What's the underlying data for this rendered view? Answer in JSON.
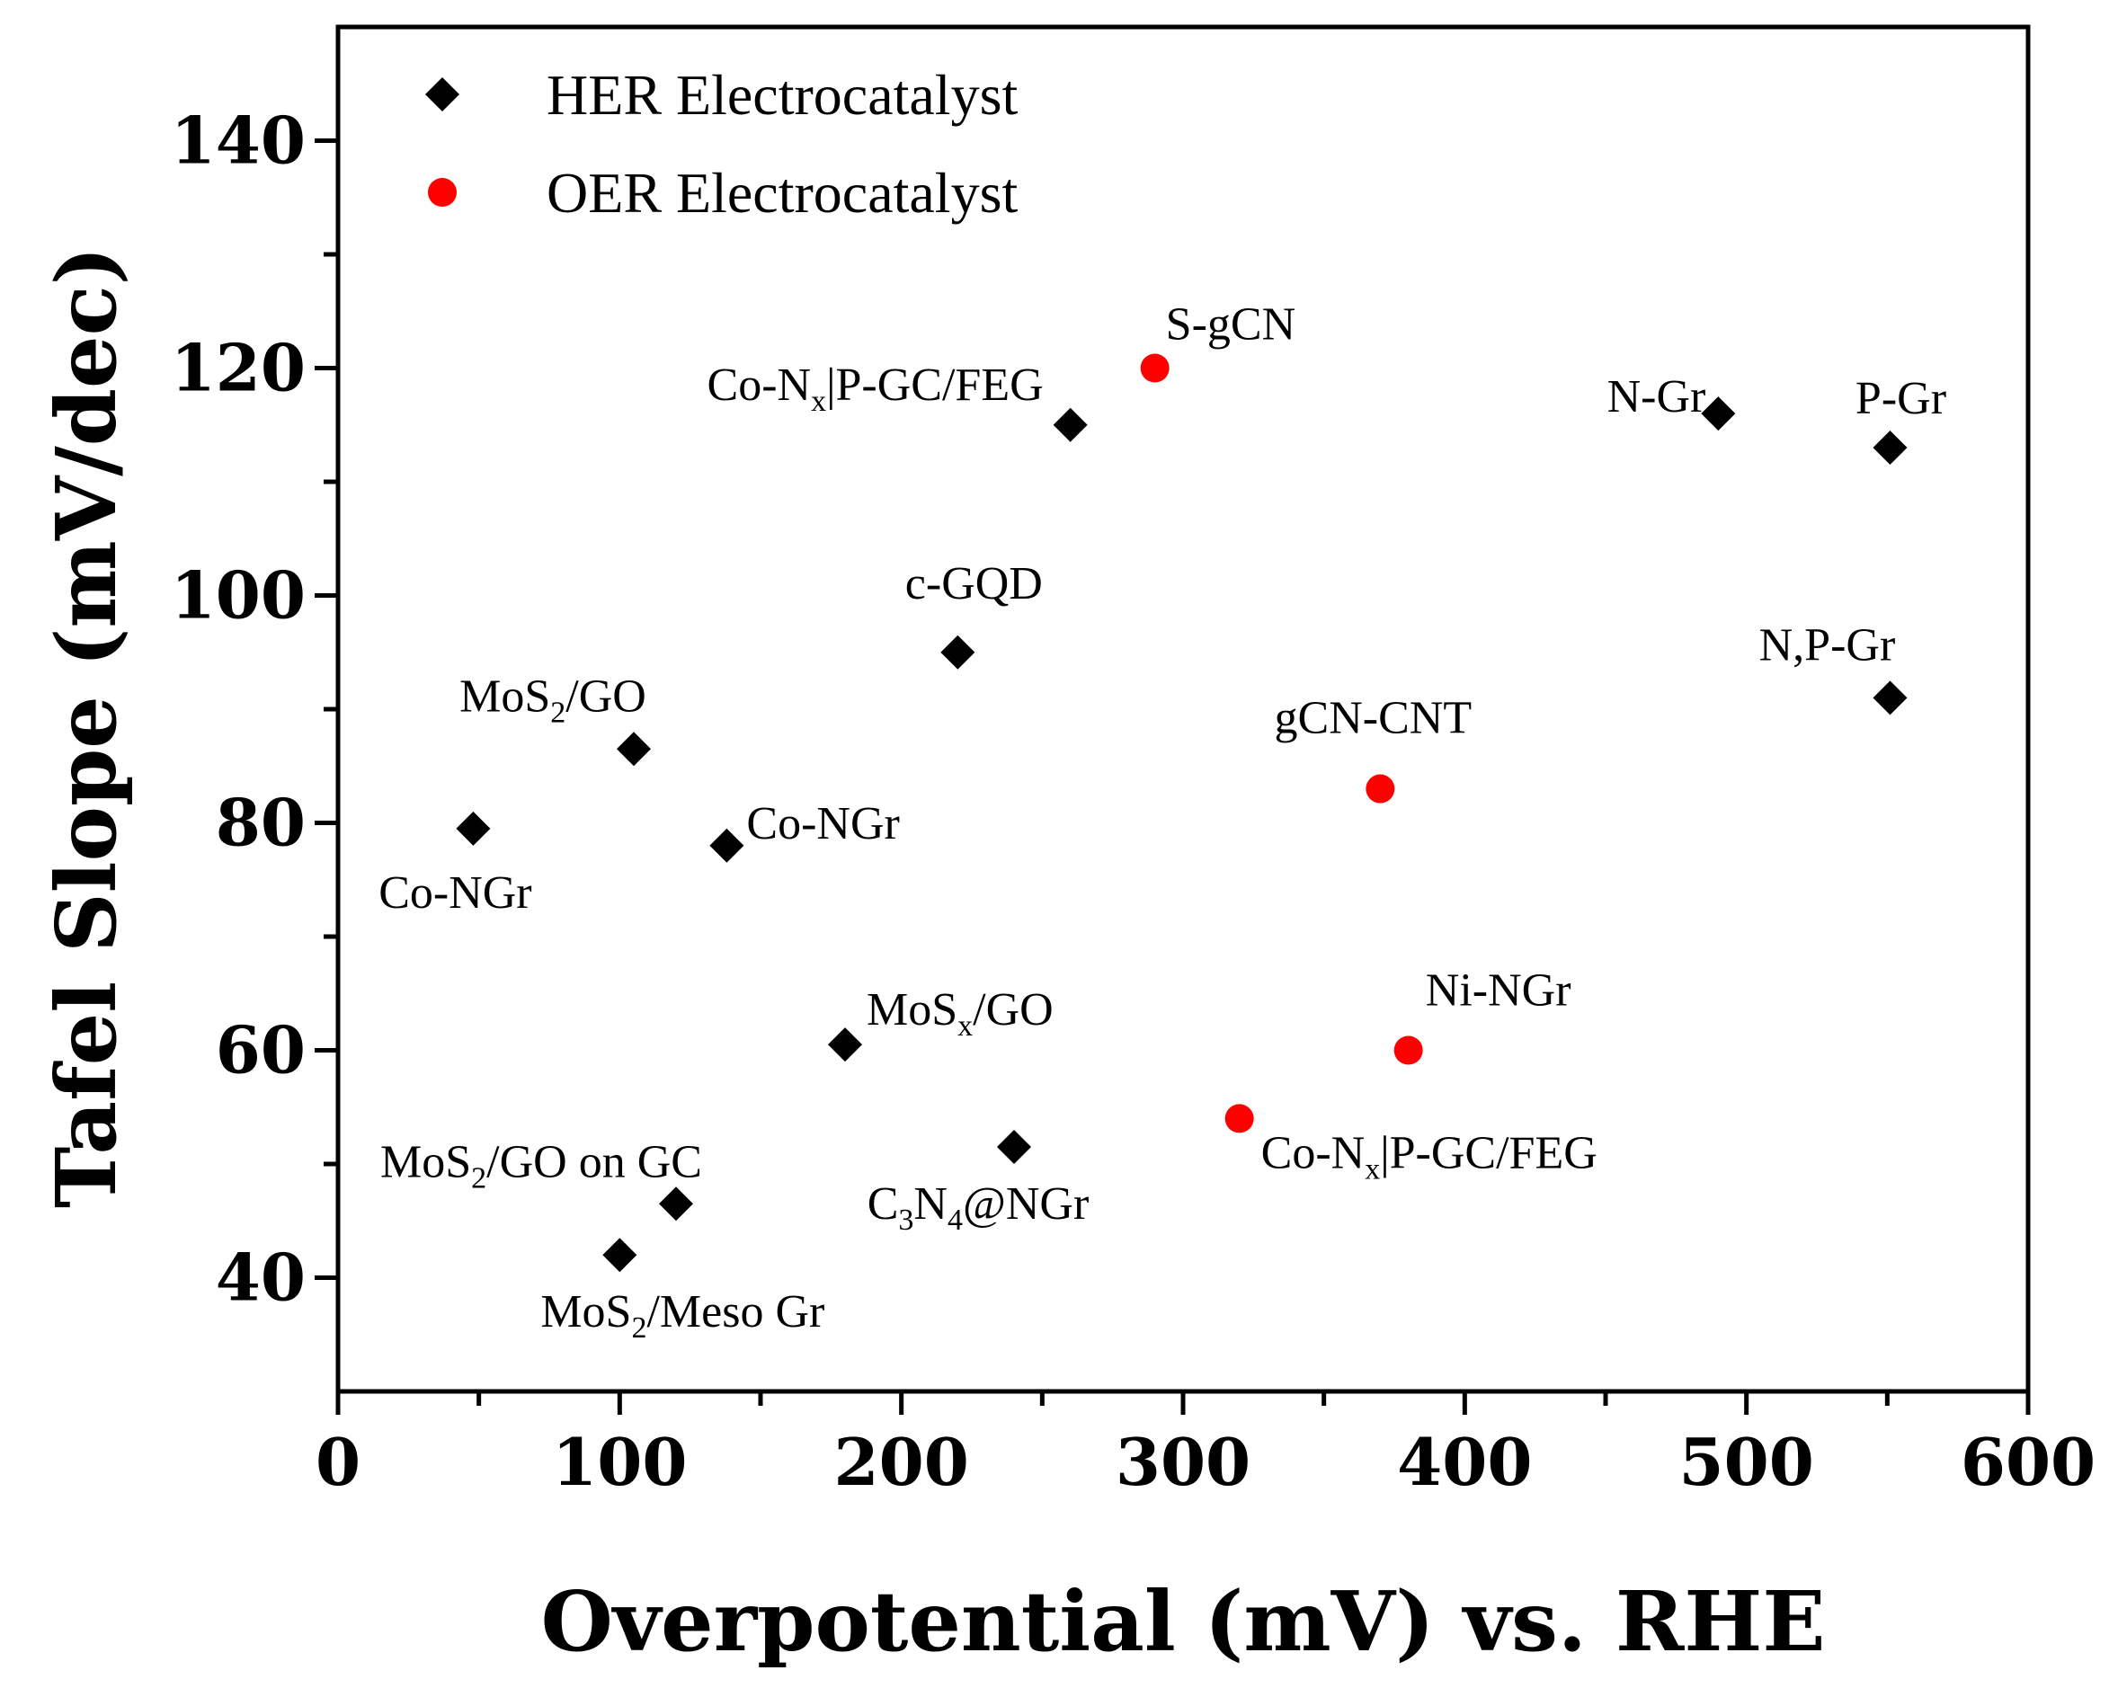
{
  "chart_data": {
    "type": "scatter",
    "title": "",
    "xlabel": "Overpotential (mV) vs. RHE",
    "ylabel": "Tafel Slope (mV/dec)",
    "xlim": [
      0,
      600
    ],
    "ylim": [
      30,
      150
    ],
    "xticks": [
      0,
      100,
      200,
      300,
      400,
      500,
      600
    ],
    "yticks": [
      40,
      60,
      80,
      100,
      120,
      140
    ],
    "grid": false,
    "legend_position": "top-left",
    "series": [
      {
        "name": "HER Electrocatalyst",
        "marker": "diamond",
        "color": "#000000",
        "points": [
          {
            "x": 48,
            "y": 79.5,
            "label": "Co-NGr",
            "sub_label": null
          },
          {
            "x": 105,
            "y": 86.5,
            "label": "MoS2/GO",
            "sub_label": "2"
          },
          {
            "x": 138,
            "y": 78,
            "label": "Co-NGr",
            "sub_label": null
          },
          {
            "x": 180,
            "y": 60.5,
            "label": "MoSx/GO",
            "sub_label": "x"
          },
          {
            "x": 220,
            "y": 95,
            "label": "c-GQD",
            "sub_label": null
          },
          {
            "x": 240,
            "y": 51.5,
            "label": "C3N4@NGr",
            "sub_label": "3,4"
          },
          {
            "x": 260,
            "y": 115,
            "label": "Co-Nx|P-GC/FEG",
            "sub_label": "x"
          },
          {
            "x": 120,
            "y": 46.5,
            "label": "MoS2/GO on GC",
            "sub_label": "2"
          },
          {
            "x": 100,
            "y": 42,
            "label": "MoS2/Meso Gr",
            "sub_label": "2"
          },
          {
            "x": 490,
            "y": 116,
            "label": "N-Gr",
            "sub_label": null
          },
          {
            "x": 551,
            "y": 113,
            "label": "P-Gr",
            "sub_label": null
          },
          {
            "x": 551,
            "y": 91,
            "label": "N,P-Gr",
            "sub_label": null
          }
        ]
      },
      {
        "name": "OER Electrocatalyst",
        "marker": "circle",
        "color": "#ff0000",
        "points": [
          {
            "x": 290,
            "y": 120,
            "label": "S-gCN",
            "sub_label": null
          },
          {
            "x": 370,
            "y": 83,
            "label": "gCN-CNT",
            "sub_label": null
          },
          {
            "x": 380,
            "y": 60,
            "label": "Ni-NGr",
            "sub_label": null
          },
          {
            "x": 320,
            "y": 54,
            "label": "Co-Nx|P-GC/FEG",
            "sub_label": "x"
          }
        ]
      }
    ]
  },
  "legend": {
    "items": [
      {
        "label": "HER Electrocatalyst"
      },
      {
        "label": "OER Electrocatalyst"
      }
    ]
  }
}
